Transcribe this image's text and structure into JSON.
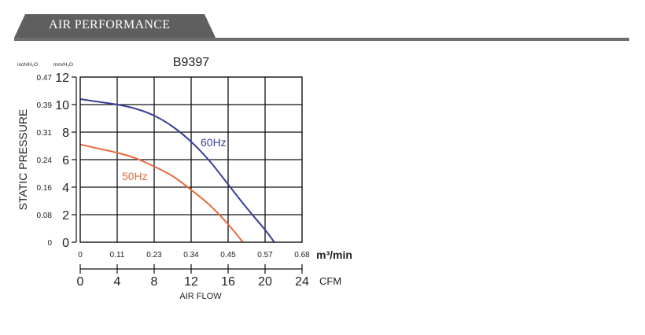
{
  "header": {
    "title": "AIR PERFORMANCE",
    "color": "#5f5f5f"
  },
  "chart_data": {
    "type": "line",
    "title": "B9397",
    "ylabel": "STATIC PRESSURE",
    "xlabel": "AIR FLOW",
    "y_units": {
      "inch": "inch/H₂O",
      "mm": "mm/H₂O"
    },
    "x_units": {
      "m3": "m³/min",
      "cfm": "CFM"
    },
    "xlim": [
      0,
      24
    ],
    "ylim": [
      0,
      12
    ],
    "y_ticks_mm": [
      "0",
      "2",
      "4",
      "6",
      "8",
      "10",
      "12"
    ],
    "y_ticks_inch": [
      "0",
      "0.08",
      "0.16",
      "0.24",
      "0.31",
      "0.39",
      "0.47"
    ],
    "x_ticks_m3": [
      "0",
      "0.11",
      "0.23",
      "0.34",
      "0.45",
      "0.57",
      "0.68"
    ],
    "x_ticks_cfm": [
      "0",
      "4",
      "8",
      "12",
      "16",
      "20",
      "24"
    ],
    "grid": true,
    "series": [
      {
        "name": "60Hz",
        "color": "#3a3f95",
        "x": [
          0,
          2,
          4,
          6,
          8,
          10,
          12,
          14,
          16,
          18,
          20,
          21
        ],
        "y": [
          10.4,
          10.2,
          10.0,
          9.7,
          9.2,
          8.4,
          7.3,
          5.9,
          4.2,
          2.5,
          0.9,
          0
        ]
      },
      {
        "name": "50Hz",
        "color": "#e8693a",
        "x": [
          0,
          2,
          4,
          6,
          8,
          10,
          12,
          14,
          16,
          17.6
        ],
        "y": [
          7.1,
          6.8,
          6.5,
          6.1,
          5.5,
          4.8,
          3.8,
          2.7,
          1.3,
          0
        ]
      }
    ]
  }
}
